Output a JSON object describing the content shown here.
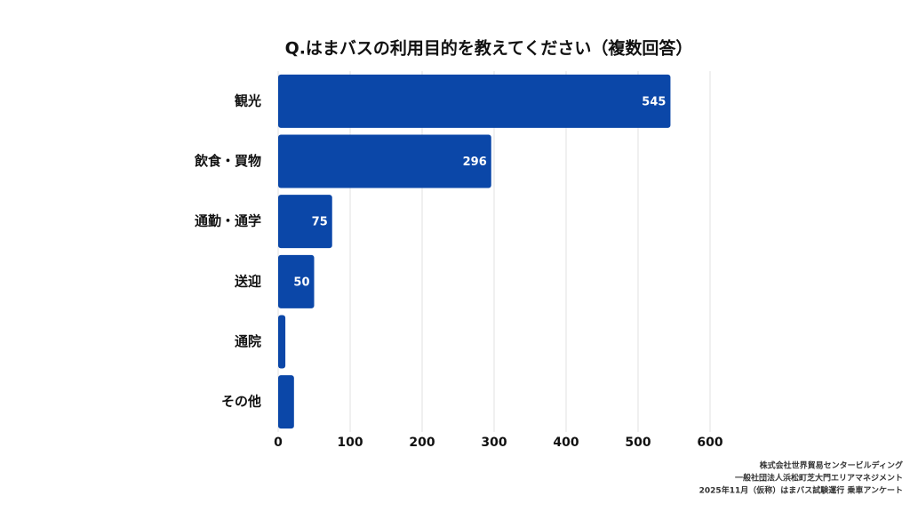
{
  "chart_data": {
    "type": "bar",
    "orientation": "horizontal",
    "title": "Q.はまバスの利用目的を教えてください（複数回答）",
    "categories": [
      "観光",
      "飲食・買物",
      "通勤・通学",
      "送迎",
      "通院",
      "その他"
    ],
    "values": [
      545,
      296,
      75,
      50,
      10,
      22
    ],
    "color": "#0b47a8",
    "xlim": [
      0,
      600
    ],
    "xticks": [
      0,
      100,
      200,
      300,
      400,
      500,
      600
    ],
    "grid": true
  },
  "notes": [
    "株式会社世界貿易センタービルディング",
    "一般社団法人浜松町芝大門エリアマネジメント",
    "2025年11月（仮称）はまバス試験運行 乗車アンケート"
  ]
}
